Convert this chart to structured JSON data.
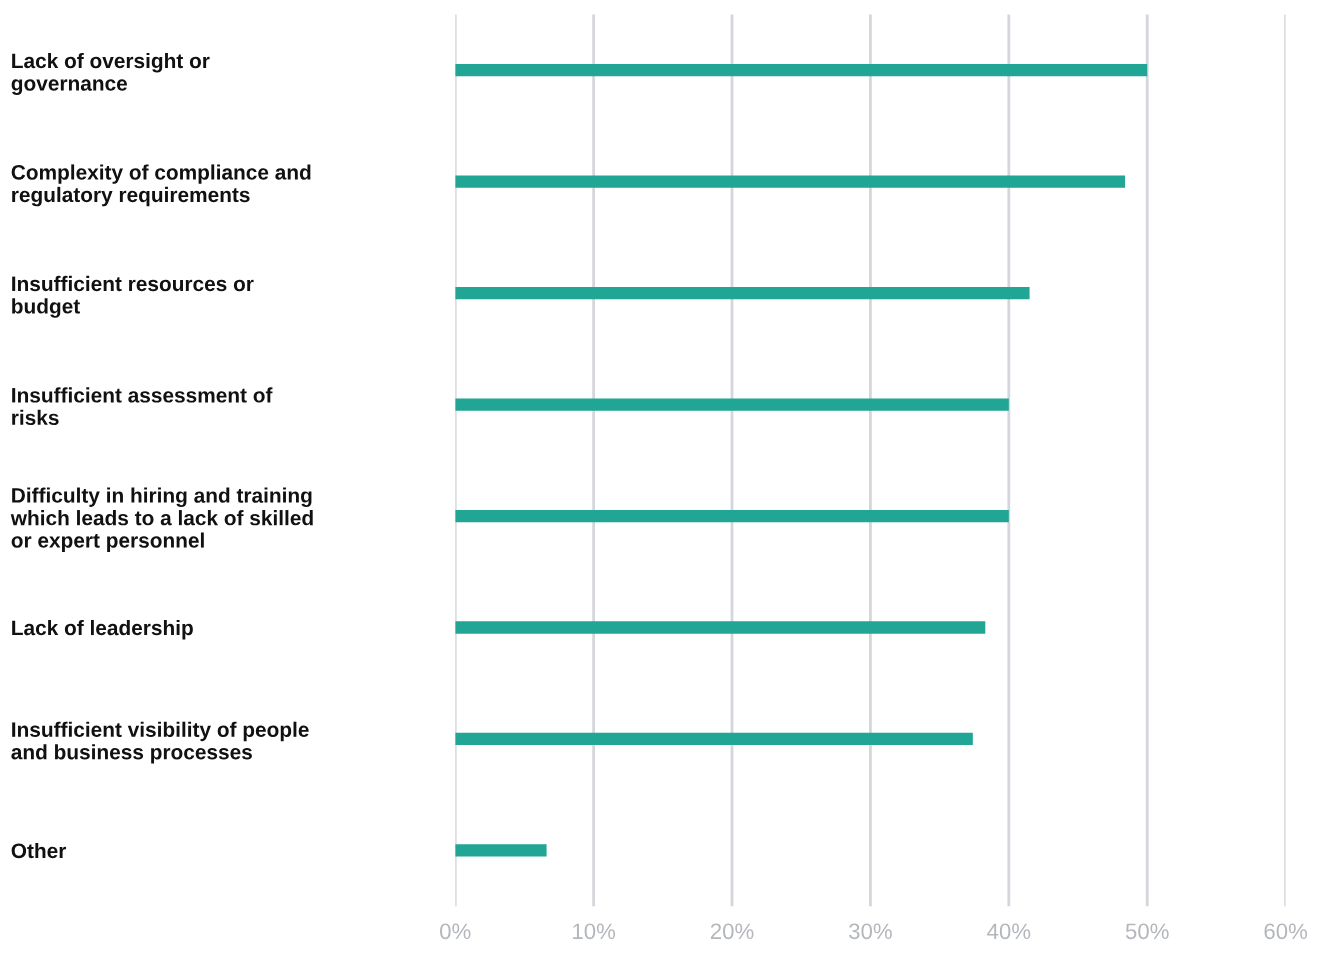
{
  "chart_data": {
    "type": "bar",
    "orientation": "horizontal",
    "categories": [
      "Lack of oversight or\ngovernance",
      "Complexity of compliance and\nregulatory requirements",
      "Insufficient resources or\nbudget",
      "Insufficient assessment of\nrisks",
      "Difficulty in hiring and training\nwhich leads to a lack of skilled\nor expert personnel",
      "Lack of leadership",
      "Insufficient visibility of people\nand business processes",
      "Other"
    ],
    "values": [
      50,
      48.4,
      41.5,
      40,
      40,
      38.3,
      37.4,
      6.6
    ],
    "color": "#21a595",
    "xlim": [
      0,
      60
    ],
    "xticks": [
      {
        "value": 0,
        "label": "0%"
      },
      {
        "value": 10,
        "label": "10%"
      },
      {
        "value": 20,
        "label": "20%"
      },
      {
        "value": 30,
        "label": "30%"
      },
      {
        "value": 40,
        "label": "40%"
      },
      {
        "value": 50,
        "label": "50%"
      },
      {
        "value": 60,
        "label": "60%"
      }
    ],
    "grid": "x",
    "legend": false
  }
}
